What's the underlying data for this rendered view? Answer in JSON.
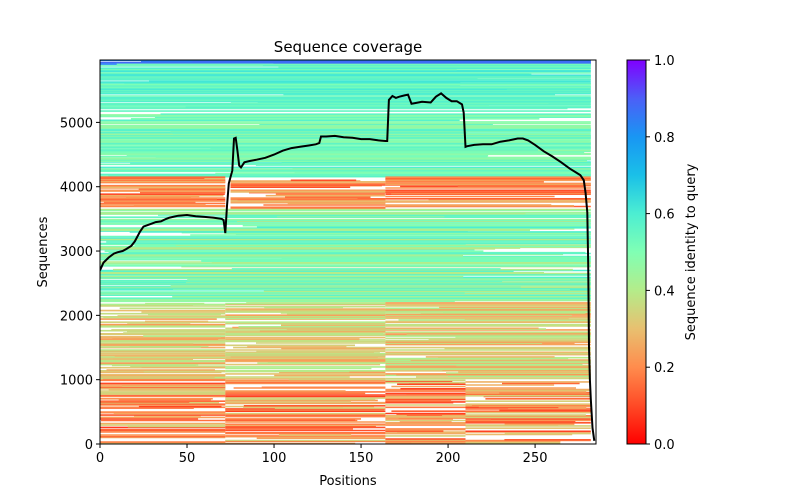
{
  "chart_data": {
    "type": "heatmap",
    "title": "Sequence coverage",
    "xlabel": "Positions",
    "ylabel": "Sequences",
    "xlim": [
      0,
      285
    ],
    "ylim": [
      0,
      5970
    ],
    "xticks": [
      0,
      50,
      100,
      150,
      200,
      250
    ],
    "yticks": [
      0,
      1000,
      2000,
      3000,
      4000,
      5000
    ],
    "grid": false,
    "colorbar": {
      "label": "Sequence identity to query",
      "range": [
        0.0,
        1.0
      ],
      "ticks": [
        0.0,
        0.2,
        0.4,
        0.6,
        0.8,
        1.0
      ],
      "tick_labels": [
        "0.0",
        "0.2",
        "0.4",
        "0.6",
        "0.8",
        "1.0"
      ],
      "colormap": "rainbow_r",
      "placement": "right"
    },
    "coverage_line": {
      "name": "coverage",
      "color": "#000000",
      "x": [
        0,
        2,
        5,
        8,
        10,
        13,
        15,
        18,
        20,
        23,
        25,
        27,
        30,
        32,
        35,
        38,
        40,
        45,
        50,
        55,
        60,
        65,
        70,
        71,
        72,
        73,
        74,
        75,
        76,
        77,
        78,
        79,
        80,
        81,
        83,
        86,
        90,
        95,
        100,
        105,
        110,
        115,
        120,
        124,
        126,
        127,
        130,
        135,
        140,
        145,
        150,
        155,
        160,
        164,
        165,
        166,
        168,
        170,
        172,
        175,
        177,
        179,
        181,
        185,
        190,
        193,
        196,
        199,
        202,
        205,
        208,
        209,
        210,
        211,
        215,
        220,
        225,
        230,
        235,
        240,
        243,
        246,
        250,
        255,
        260,
        265,
        270,
        273,
        276,
        278,
        279,
        280,
        280.5,
        281,
        281.5,
        282,
        283,
        284
      ],
      "y": [
        2700,
        2820,
        2900,
        2960,
        2980,
        3000,
        3030,
        3080,
        3150,
        3300,
        3380,
        3400,
        3430,
        3450,
        3460,
        3500,
        3520,
        3550,
        3560,
        3540,
        3530,
        3520,
        3500,
        3480,
        3280,
        3700,
        4050,
        4150,
        4250,
        4750,
        4760,
        4550,
        4330,
        4300,
        4380,
        4400,
        4420,
        4450,
        4500,
        4560,
        4600,
        4620,
        4640,
        4660,
        4680,
        4780,
        4780,
        4790,
        4770,
        4760,
        4740,
        4740,
        4720,
        4710,
        4710,
        5350,
        5410,
        5380,
        5400,
        5420,
        5430,
        5290,
        5300,
        5320,
        5310,
        5400,
        5450,
        5380,
        5330,
        5330,
        5280,
        5150,
        4620,
        4630,
        4650,
        4660,
        4660,
        4700,
        4720,
        4750,
        4750,
        4720,
        4650,
        4550,
        4470,
        4380,
        4280,
        4230,
        4180,
        4100,
        3900,
        3600,
        2800,
        1500,
        1000,
        700,
        250,
        50
      ]
    },
    "alignment_blocks": [
      {
        "rows": [
          5900,
          5970
        ],
        "identity": [
          0.78,
          0.92
        ],
        "density": 0.95,
        "segments": [
          [
            0,
            282
          ]
        ]
      },
      {
        "rows": [
          5200,
          5900
        ],
        "identity": [
          0.5,
          0.62
        ],
        "density": 0.85,
        "segments": [
          [
            0,
            282
          ]
        ]
      },
      {
        "rows": [
          4150,
          5200
        ],
        "identity": [
          0.45,
          0.6
        ],
        "density": 0.8,
        "segments": [
          [
            0,
            282
          ]
        ]
      },
      {
        "rows": [
          3650,
          4150
        ],
        "identity": [
          0.1,
          0.3
        ],
        "density": 0.6,
        "segments": [
          [
            0,
            72
          ],
          [
            75,
            164
          ],
          [
            164,
            282
          ]
        ]
      },
      {
        "rows": [
          2200,
          3650
        ],
        "identity": [
          0.38,
          0.6
        ],
        "density": 0.75,
        "segments": [
          [
            0,
            282
          ]
        ]
      },
      {
        "rows": [
          1000,
          2200
        ],
        "identity": [
          0.22,
          0.42
        ],
        "density": 0.75,
        "segments": [
          [
            0,
            72
          ],
          [
            72,
            164
          ],
          [
            164,
            282
          ]
        ]
      },
      {
        "rows": [
          0,
          1000
        ],
        "identity": [
          0.08,
          0.35
        ],
        "density": 0.55,
        "segments": [
          [
            0,
            72
          ],
          [
            72,
            164
          ],
          [
            164,
            210
          ],
          [
            210,
            282
          ]
        ]
      }
    ]
  }
}
